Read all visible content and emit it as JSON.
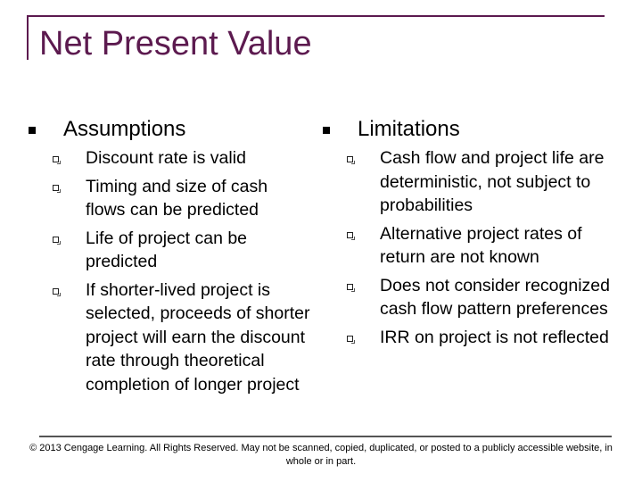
{
  "slide": {
    "title": "Net Present Value"
  },
  "assumptions": {
    "heading": "Assumptions",
    "items": [
      "Discount rate is valid",
      "Timing and size of cash flows can be predicted",
      "Life of project can be predicted",
      "If shorter-lived project is selected, proceeds of shorter project will earn the discount rate through theoretical completion of longer project"
    ]
  },
  "limitations": {
    "heading": "Limitations",
    "items": [
      "Cash flow and project life are deterministic, not subject to probabilities",
      "Alternative project rates of return are not known",
      "Does not consider recognized cash flow pattern preferences",
      "IRR on project is not reflected"
    ]
  },
  "footer": {
    "copyright": "© 2013 Cengage Learning. All Rights Reserved. May not be scanned, copied, duplicated, or posted to a publicly accessible website, in whole or in part."
  },
  "colors": {
    "title": "#5c1a4f"
  }
}
